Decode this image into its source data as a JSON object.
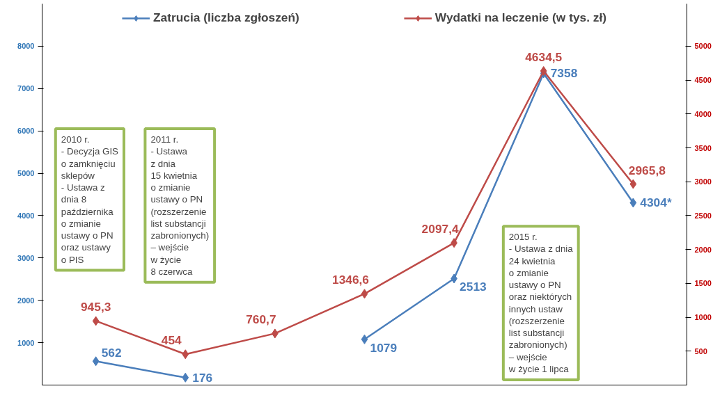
{
  "chart_data": {
    "type": "line",
    "categories": [
      null,
      null,
      null,
      null,
      null,
      null,
      null
    ],
    "series": [
      {
        "name": "Zatrucia (liczba zgłoszeń)",
        "color": "#4a7ebb",
        "values": [
          562,
          176,
          null,
          1079,
          2513,
          7358,
          4304
        ],
        "value_labels": [
          "562",
          "176",
          null,
          "1079",
          "2513",
          "7358",
          "4304*"
        ]
      },
      {
        "name": "Wydatki na leczenie (w tys. zł)",
        "color": "#be4b48",
        "axis": "y2",
        "values": [
          945.3,
          454,
          760.7,
          1346.6,
          2097.4,
          4634.5,
          2965.8
        ],
        "value_labels": [
          "945,3",
          "454",
          "760,7",
          "1346,6",
          "2097,4",
          "4634,5",
          "2965,8"
        ]
      }
    ],
    "ylim": [
      0,
      9000
    ],
    "yticks": [
      1000,
      2000,
      3000,
      4000,
      5000,
      6000,
      7000,
      8000
    ],
    "y2lim": [
      0,
      5625
    ],
    "y2ticks": [
      500,
      1000,
      1500,
      2000,
      2500,
      3000,
      3500,
      4000,
      4500,
      5000
    ],
    "marker": "diamond",
    "line_style": "solid",
    "grid": false,
    "legend": "top",
    "annotations": [
      "2010 r.\n- Decyzja GIS\no zamknięciu\nsklepów\n- Ustawa z\ndnia 8\npaździernika\no zmianie\nustawy o PN\noraz ustawy\no PIS",
      "2011 r.\n- Ustawa\nz dnia\n15 kwietnia\no zmianie\nustawy o PN\n(rozszerzenie\nlist substancji\nzabronionych)\n– wejście\nw życie\n8 czerwca",
      "2015 r.\n- Ustawa z dnia\n24 kwietnia\no zmianie\nustawy o PN\noraz niektórych\ninnych ustaw\n(rozszerzenie\nlist substancji\nzabronionych)\n– wejście\nw życie 1 lipca"
    ]
  }
}
